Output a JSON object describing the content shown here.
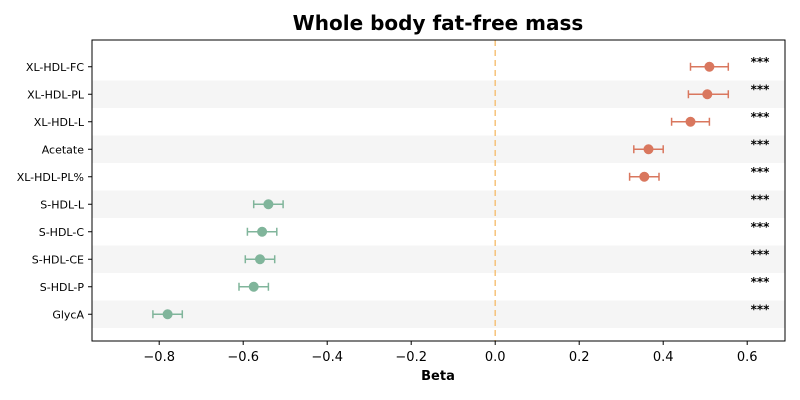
{
  "chart_data": {
    "type": "scatter",
    "title": "Whole body fat-free mass",
    "xlabel": "Beta",
    "ylabel": "",
    "xlim": [
      -0.96,
      0.69
    ],
    "xticks": [
      -0.8,
      -0.6,
      -0.4,
      -0.2,
      0.0,
      0.2,
      0.4,
      0.6
    ],
    "xtick_labels": [
      "−0.8",
      "−0.6",
      "−0.4",
      "−0.2",
      "0.0",
      "0.2",
      "0.4",
      "0.6"
    ],
    "reference_line": 0.0,
    "reference_line_color": "#f5c27a",
    "positive_color": "#d9775e",
    "negative_color": "#80b59b",
    "stripe_color": "#f5f5f5",
    "grid": false,
    "legend": "none",
    "points": [
      {
        "label": "XL-HDL-FC",
        "beta": 0.51,
        "lo": 0.465,
        "hi": 0.555,
        "sig": "***"
      },
      {
        "label": "XL-HDL-PL",
        "beta": 0.505,
        "lo": 0.46,
        "hi": 0.555,
        "sig": "***"
      },
      {
        "label": "XL-HDL-L",
        "beta": 0.465,
        "lo": 0.42,
        "hi": 0.51,
        "sig": "***"
      },
      {
        "label": "Acetate",
        "beta": 0.365,
        "lo": 0.33,
        "hi": 0.4,
        "sig": "***"
      },
      {
        "label": "XL-HDL-PL%",
        "beta": 0.355,
        "lo": 0.32,
        "hi": 0.39,
        "sig": "***"
      },
      {
        "label": "S-HDL-L",
        "beta": -0.54,
        "lo": -0.575,
        "hi": -0.505,
        "sig": "***"
      },
      {
        "label": "S-HDL-C",
        "beta": -0.555,
        "lo": -0.59,
        "hi": -0.52,
        "sig": "***"
      },
      {
        "label": "S-HDL-CE",
        "beta": -0.56,
        "lo": -0.595,
        "hi": -0.525,
        "sig": "***"
      },
      {
        "label": "S-HDL-P",
        "beta": -0.575,
        "lo": -0.61,
        "hi": -0.54,
        "sig": "***"
      },
      {
        "label": "GlycA",
        "beta": -0.78,
        "lo": -0.815,
        "hi": -0.745,
        "sig": "***"
      }
    ]
  }
}
